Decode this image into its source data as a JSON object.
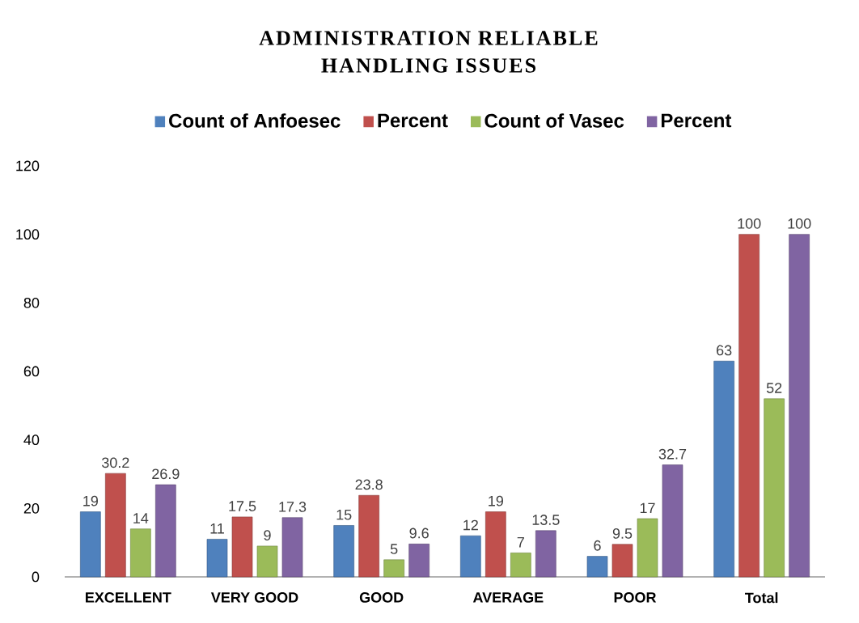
{
  "chart_data": {
    "type": "bar",
    "title": "ADMINISTRATION RELIABLE HANDLING ISSUES",
    "categories": [
      "EXCELLENT",
      "VERY GOOD",
      "GOOD",
      "AVERAGE",
      "POOR",
      "Total"
    ],
    "series": [
      {
        "name": "Count of Anfoesec",
        "color": "#4f81bd",
        "values": [
          19,
          11,
          15,
          12,
          6,
          63
        ]
      },
      {
        "name": "Percent",
        "color": "#c0504d",
        "values": [
          30.2,
          17.5,
          23.8,
          19,
          9.5,
          100
        ]
      },
      {
        "name": "Count of Vasec",
        "color": "#9bbb59",
        "values": [
          14,
          9,
          5,
          7,
          17,
          52
        ]
      },
      {
        "name": "Percent",
        "color": "#8064a2",
        "values": [
          26.9,
          17.3,
          9.6,
          13.5,
          32.7,
          100
        ]
      }
    ],
    "ylim": [
      0,
      120
    ],
    "yticks": [
      0,
      20,
      40,
      60,
      80,
      100,
      120
    ],
    "data_labels": true,
    "grid": false,
    "legend": "top"
  }
}
